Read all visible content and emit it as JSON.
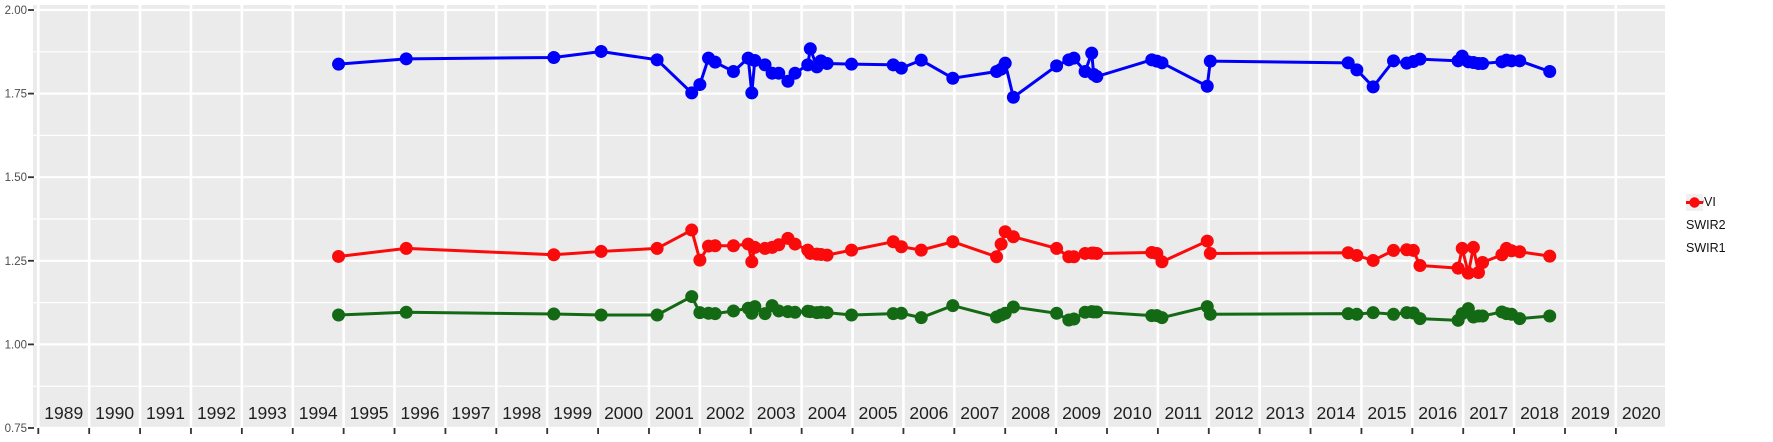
{
  "chart_data": {
    "type": "line",
    "title": "",
    "xlabel": "",
    "ylabel": "",
    "xlim": [
      1988.9,
      2021.0
    ],
    "ylim": [
      0.75,
      2.0
    ],
    "grid": true,
    "panel_background": "#EBEBEB",
    "grid_color": "#FFFFFF",
    "axis_text_color": "#4D4D4D",
    "x_label_color": "#1F1F1F",
    "tick_color": "#333333",
    "legend_position": "right",
    "legend_key_background": "#F0F0F0",
    "x_tick_years": [
      1989,
      1990,
      1991,
      1992,
      1993,
      1994,
      1995,
      1996,
      1997,
      1998,
      1999,
      2000,
      2001,
      2002,
      2003,
      2004,
      2005,
      2006,
      2007,
      2008,
      2009,
      2010,
      2011,
      2012,
      2013,
      2014,
      2015,
      2016,
      2017,
      2018,
      2019,
      2020
    ],
    "y_ticks": [
      "2.00",
      "1.75",
      "1.50",
      "1.25",
      "1.00",
      "0.75"
    ],
    "y_tick_values": [
      2.0,
      1.75,
      1.5,
      1.25,
      1.0,
      0.75
    ],
    "y_minor_values": [
      1.875,
      1.625,
      1.375,
      1.125,
      0.875
    ],
    "x": [
      1994.9,
      1996.23,
      1999.13,
      2000.06,
      2001.16,
      2001.84,
      2002.0,
      2002.17,
      2002.3,
      2002.66,
      2002.95,
      2003.02,
      2003.08,
      2003.28,
      2003.42,
      2003.55,
      2003.73,
      2003.87,
      2004.12,
      2004.17,
      2004.3,
      2004.38,
      2004.5,
      2004.98,
      2005.8,
      2005.96,
      2006.35,
      2006.97,
      2007.83,
      2007.92,
      2008.0,
      2008.16,
      2009.01,
      2009.25,
      2009.35,
      2009.57,
      2009.7,
      2009.74,
      2009.8,
      2010.88,
      2010.98,
      2011.08,
      2011.97,
      2012.03,
      2014.74,
      2014.91,
      2015.23,
      2015.63,
      2015.89,
      2016.02,
      2016.15,
      2016.9,
      2016.98,
      2017.1,
      2017.2,
      2017.3,
      2017.38,
      2017.76,
      2017.85,
      2017.95,
      2018.11,
      2018.7
    ],
    "series": [
      {
        "name": "NDVI",
        "color": "#0000FA",
        "values": [
          1.838,
          1.854,
          1.858,
          1.876,
          1.851,
          1.752,
          1.777,
          1.856,
          1.844,
          1.816,
          1.856,
          1.752,
          1.849,
          1.836,
          1.811,
          1.811,
          1.787,
          1.811,
          1.836,
          1.884,
          1.83,
          1.848,
          1.84,
          1.838,
          1.836,
          1.826,
          1.85,
          1.796,
          1.816,
          1.823,
          1.841,
          1.739,
          1.833,
          1.851,
          1.856,
          1.816,
          1.871,
          1.807,
          1.801,
          1.851,
          1.847,
          1.842,
          1.772,
          1.847,
          1.842,
          1.821,
          1.77,
          1.848,
          1.841,
          1.846,
          1.853,
          1.848,
          1.862,
          1.845,
          1.843,
          1.84,
          1.84,
          1.845,
          1.85,
          1.848,
          1.848,
          1.816
        ]
      },
      {
        "name": "SWIR2",
        "color": "#146914",
        "values": [
          1.088,
          1.096,
          1.091,
          1.088,
          1.088,
          1.143,
          1.095,
          1.093,
          1.092,
          1.1,
          1.108,
          1.093,
          1.113,
          1.092,
          1.116,
          1.1,
          1.098,
          1.096,
          1.099,
          1.098,
          1.095,
          1.096,
          1.095,
          1.088,
          1.092,
          1.093,
          1.08,
          1.116,
          1.082,
          1.088,
          1.093,
          1.112,
          1.093,
          1.073,
          1.076,
          1.096,
          1.098,
          1.097,
          1.097,
          1.086,
          1.086,
          1.08,
          1.113,
          1.09,
          1.092,
          1.09,
          1.095,
          1.09,
          1.095,
          1.094,
          1.077,
          1.072,
          1.092,
          1.107,
          1.082,
          1.085,
          1.085,
          1.097,
          1.092,
          1.09,
          1.077,
          1.085
        ]
      },
      {
        "name": "SWIR1",
        "color": "#FA0A0A",
        "values": [
          1.263,
          1.287,
          1.268,
          1.278,
          1.287,
          1.342,
          1.252,
          1.294,
          1.295,
          1.295,
          1.3,
          1.247,
          1.29,
          1.287,
          1.29,
          1.298,
          1.317,
          1.3,
          1.282,
          1.272,
          1.27,
          1.269,
          1.267,
          1.282,
          1.307,
          1.292,
          1.282,
          1.307,
          1.262,
          1.3,
          1.337,
          1.322,
          1.287,
          1.262,
          1.262,
          1.272,
          1.273,
          1.273,
          1.272,
          1.275,
          1.272,
          1.247,
          1.309,
          1.272,
          1.274,
          1.266,
          1.251,
          1.281,
          1.283,
          1.281,
          1.236,
          1.228,
          1.287,
          1.213,
          1.29,
          1.215,
          1.245,
          1.268,
          1.287,
          1.28,
          1.277,
          1.264
        ]
      }
    ],
    "legend_labels": [
      "NDVI",
      "SWIR2",
      "SWIR1"
    ]
  }
}
